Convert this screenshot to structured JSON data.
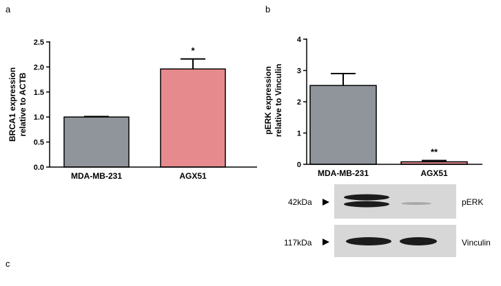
{
  "panels": {
    "a": "a",
    "b": "b",
    "c": "c"
  },
  "chart_data": [
    {
      "type": "bar",
      "panel": "a",
      "categories": [
        "MDA-MB-231",
        "AGX51"
      ],
      "values": [
        1.0,
        1.96
      ],
      "errors": [
        0.01,
        0.2
      ],
      "significance": [
        "",
        "*"
      ],
      "colors": [
        "#8f959a",
        "#e68a8d"
      ],
      "ylabel": [
        "BRCA1 expression",
        "relative to ACTB"
      ],
      "ylim": [
        0,
        2.5
      ],
      "yticks": [
        "0.0",
        "0.5",
        "1.0",
        "1.5",
        "2.0",
        "2.5"
      ],
      "grid": false
    },
    {
      "type": "bar",
      "panel": "b",
      "categories": [
        "MDA-MB-231",
        "AGX51"
      ],
      "values": [
        2.52,
        0.08
      ],
      "errors": [
        0.38,
        0.04
      ],
      "significance": [
        "",
        "**"
      ],
      "colors": [
        "#8f959a",
        "#e68a8d"
      ],
      "ylabel": [
        "pERK expression",
        "relative to Vinculin"
      ],
      "ylim": [
        0,
        4
      ],
      "yticks": [
        "0",
        "1",
        "2",
        "3",
        "4"
      ],
      "grid": false
    }
  ],
  "blot": {
    "rows": [
      {
        "marker": "42kDa",
        "label": "pERK"
      },
      {
        "marker": "117kDa",
        "label": "Vinculin"
      }
    ],
    "colors": {
      "background": "#d7d7d7",
      "band": "#1c1c1c"
    }
  }
}
